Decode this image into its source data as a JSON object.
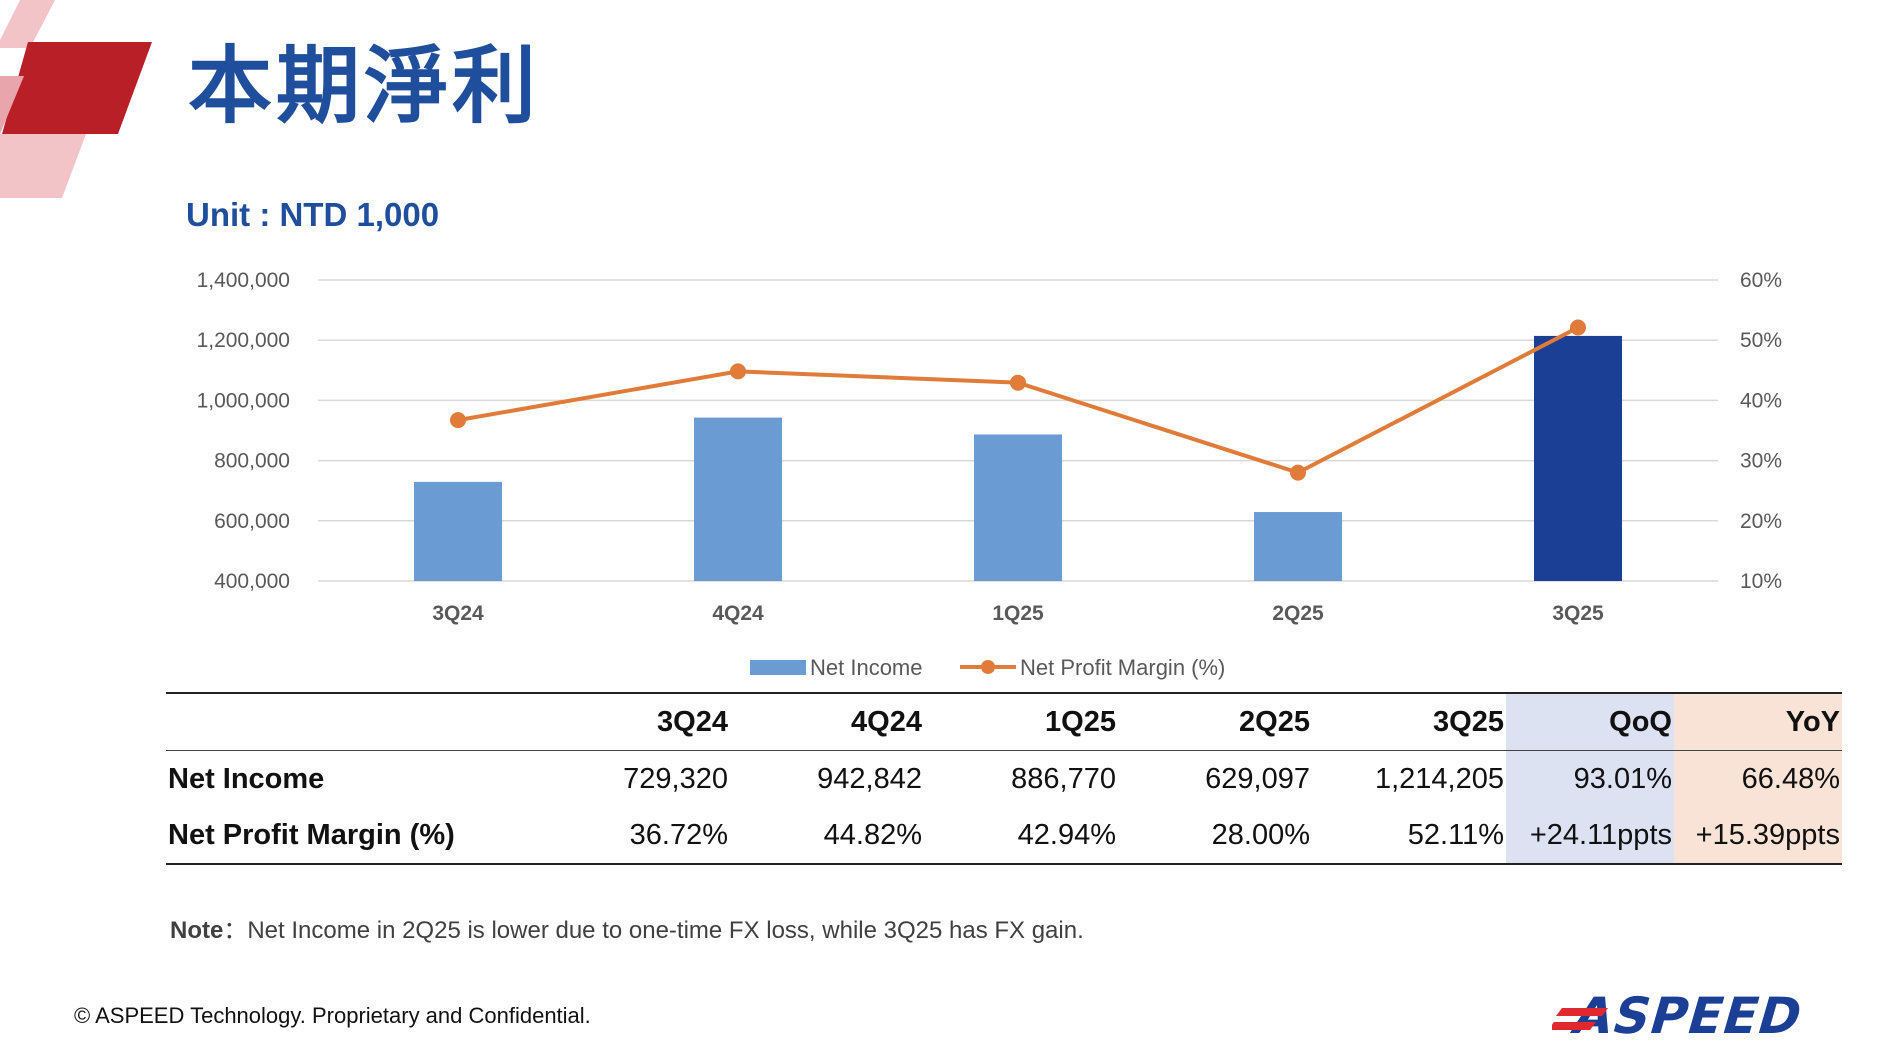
{
  "title": "本期淨利",
  "unit_label": "Unit : NTD 1,000",
  "chart_data": {
    "type": "bar",
    "categories": [
      "3Q24",
      "4Q24",
      "1Q25",
      "2Q25",
      "3Q25"
    ],
    "series": [
      {
        "name": "Net Income",
        "type": "bar",
        "axis": "left",
        "values": [
          729320,
          942842,
          886770,
          629097,
          1214205
        ],
        "colors": [
          "#6a9bd3",
          "#6a9bd3",
          "#6a9bd3",
          "#6a9bd3",
          "#1a3f95"
        ]
      },
      {
        "name": "Net Profit Margin (%)",
        "type": "line",
        "axis": "right",
        "values": [
          36.72,
          44.82,
          42.94,
          28.0,
          52.11
        ],
        "color": "#e07b39"
      }
    ],
    "y_left": {
      "min": 400000,
      "max": 1400000,
      "ticks": [
        "400,000",
        "600,000",
        "800,000",
        "1,000,000",
        "1,200,000",
        "1,400,000"
      ]
    },
    "y_right": {
      "min": 10,
      "max": 60,
      "ticks": [
        "10%",
        "20%",
        "30%",
        "40%",
        "50%",
        "60%"
      ]
    },
    "grid": true,
    "legend": "bottom"
  },
  "table": {
    "headers": [
      "",
      "3Q24",
      "4Q24",
      "1Q25",
      "2Q25",
      "3Q25",
      "QoQ",
      "YoY"
    ],
    "rows": [
      [
        "Net Income",
        "729,320",
        "942,842",
        "886,770",
        "629,097",
        "1,214,205",
        "93.01%",
        "66.48%"
      ],
      [
        "Net Profit Margin (%)",
        "36.72%",
        "44.82%",
        "42.94%",
        "28.00%",
        "52.11%",
        "+24.11ppts",
        "+15.39ppts"
      ]
    ]
  },
  "note": {
    "label": "Note",
    "separator": "：",
    "text": "Net Income in 2Q25 is lower due to one-time FX loss, while 3Q25 has FX gain."
  },
  "footer": "© ASPEED Technology. Proprietary and Confidential.",
  "logo_text": "ASPEED"
}
